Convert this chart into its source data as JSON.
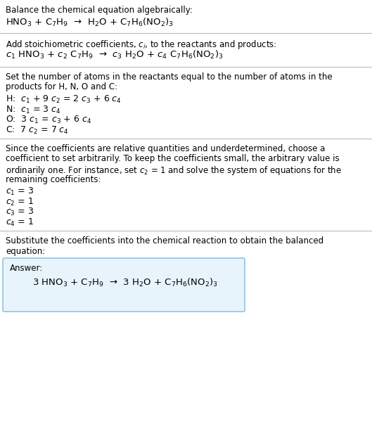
{
  "bg_color": "#ffffff",
  "text_color": "#000000",
  "divider_color": "#bbbbbb",
  "answer_box_color": "#e8f4fc",
  "answer_box_border": "#90c4e0",
  "section1_title": "Balance the chemical equation algebraically:",
  "section1_eq": "HNO$_3$ + C$_7$H$_9$  →  H$_2$O + C$_7$H$_6$(NO$_2$)$_3$",
  "section2_title": "Add stoichiometric coefficients, $c_i$, to the reactants and products:",
  "section2_eq": "$c_1$ HNO$_3$ + $c_2$ C$_7$H$_9$  →  $c_3$ H$_2$O + $c_4$ C$_7$H$_6$(NO$_2$)$_3$",
  "section3_title_l1": "Set the number of atoms in the reactants equal to the number of atoms in the",
  "section3_title_l2": "products for H, N, O and C:",
  "section3_lines": [
    "H:  $c_1$ + 9 $c_2$ = 2 $c_3$ + 6 $c_4$",
    "N:  $c_1$ = 3 $c_4$",
    "O:  3 $c_1$ = $c_3$ + 6 $c_4$",
    "C:  7 $c_2$ = 7 $c_4$"
  ],
  "section4_title_l1": "Since the coefficients are relative quantities and underdetermined, choose a",
  "section4_title_l2": "coefficient to set arbitrarily. To keep the coefficients small, the arbitrary value is",
  "section4_title_l3": "ordinarily one. For instance, set $c_2$ = 1 and solve the system of equations for the",
  "section4_title_l4": "remaining coefficients:",
  "section4_lines": [
    "$c_1$ = 3",
    "$c_2$ = 1",
    "$c_3$ = 3",
    "$c_4$ = 1"
  ],
  "section5_title_l1": "Substitute the coefficients into the chemical reaction to obtain the balanced",
  "section5_title_l2": "equation:",
  "answer_label": "Answer:",
  "answer_eq": "3 HNO$_3$ + C$_7$H$_9$  →  3 H$_2$O + C$_7$H$_6$(NO$_2$)$_3$",
  "fs_body": 8.5,
  "fs_eq": 9.5,
  "fs_eq_line": 9.0
}
